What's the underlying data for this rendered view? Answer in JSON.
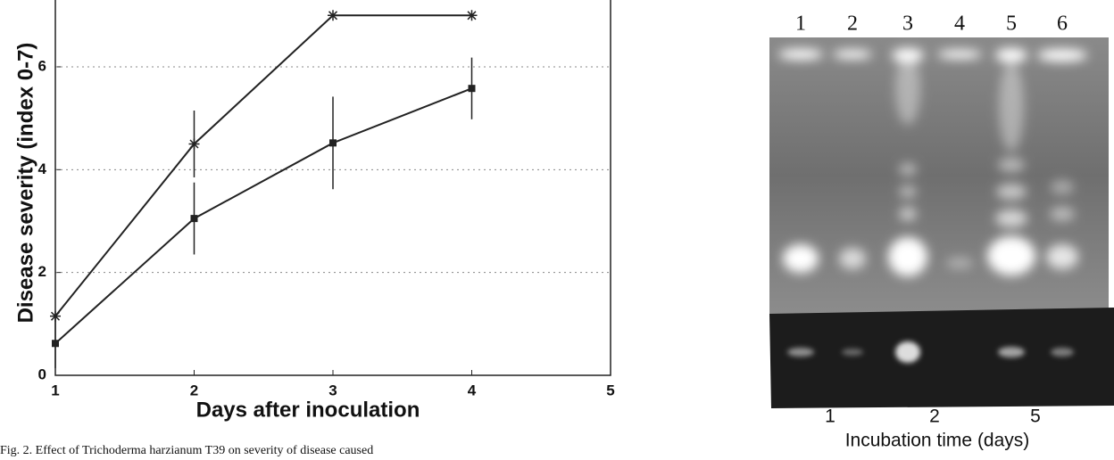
{
  "chart_data": {
    "type": "line",
    "xlabel": "Days after inoculation",
    "ylabel": "Disease severity (index 0-7)",
    "x": [
      1,
      2,
      3,
      4
    ],
    "series": [
      {
        "marker": "star",
        "color": "#222222",
        "values": [
          1.15,
          4.5,
          7,
          7
        ],
        "errors": [
          null,
          0.65,
          null,
          null
        ]
      },
      {
        "marker": "square",
        "color": "#222222",
        "values": [
          0.62,
          3.05,
          4.52,
          5.58
        ],
        "errors": [
          0.48,
          0.7,
          0.9,
          0.6
        ]
      }
    ],
    "xlim": [
      1,
      5
    ],
    "ylim": [
      0,
      7.3
    ],
    "xticks": [
      1,
      2,
      3,
      4,
      5
    ],
    "yticks": [
      0,
      2,
      4,
      6
    ],
    "grid": true
  },
  "caption": "Fig. 2. Effect of Trichoderma harzianum T39 on severity of disease caused",
  "gel": {
    "lane_labels": [
      "1",
      "2",
      "3",
      "4",
      "5",
      "6"
    ],
    "time_labels": [
      "1",
      "2",
      "5"
    ],
    "xlabel": "Incubation time (days)"
  }
}
